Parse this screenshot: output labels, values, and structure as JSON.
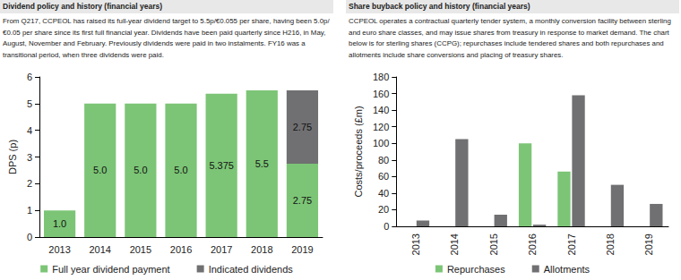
{
  "chart_data": [
    {
      "type": "bar",
      "title": "Dividend policy and history (financial years)",
      "subtitle": "From Q217, CCPEOL has raised its full-year dividend target to 5.5p/€0.055 per share, having been 5.0p/€0.05 per share since its first full financial year. Dividends have been paid quarterly since H216, in May, August, November and February. Previously dividends were paid in two instalments. FY16 was a transitional period, when three dividends were paid.",
      "categories": [
        "2013",
        "2014",
        "2015",
        "2016",
        "2017",
        "2018",
        "2019"
      ],
      "series": [
        {
          "name": "Full year dividend payment",
          "color": "#7cc576",
          "values": [
            1.0,
            5.0,
            5.0,
            5.0,
            5.375,
            5.5,
            2.75
          ],
          "value_labels": [
            "1.0",
            "5.0",
            "5.0",
            "5.0",
            "5.375",
            "5.5",
            "2.75"
          ]
        },
        {
          "name": "Indicated dividends",
          "color": "#707072",
          "values": [
            null,
            null,
            null,
            null,
            null,
            null,
            2.75
          ],
          "value_labels": [
            null,
            null,
            null,
            null,
            null,
            null,
            "2.75"
          ]
        }
      ],
      "ylabel": "DPS (p)",
      "ylim": [
        0,
        6
      ],
      "yticks": [
        0,
        1,
        2,
        3,
        4,
        5,
        6
      ],
      "stacked": true,
      "data_labels": true,
      "grid": false,
      "legend": "bottom"
    },
    {
      "type": "bar",
      "title": "Share buyback policy and history (financial years)",
      "subtitle": "CCPEOL operates a contractual quarterly tender system, a monthly conversion facility between sterling and euro share classes, and may issue shares from treasury in response to market demand. The chart below is for sterling shares (CCPG); repurchases include tendered shares and both repurchases and allotments include share conversions and placing of treasury shares.",
      "categories": [
        "2013",
        "2014",
        "2015",
        "2016",
        "2017",
        "2018",
        "2019"
      ],
      "series": [
        {
          "name": "Repurchases",
          "color": "#7cc576",
          "values": [
            null,
            null,
            null,
            100,
            66,
            null,
            null
          ]
        },
        {
          "name": "Allotments",
          "color": "#707072",
          "values": [
            7,
            105,
            14,
            2,
            158,
            50,
            27
          ]
        }
      ],
      "ylabel": "Costs/proceeds (£m)",
      "ylim": [
        0,
        180
      ],
      "yticks": [
        0,
        20,
        40,
        60,
        80,
        100,
        120,
        140,
        160,
        180
      ],
      "stacked": false,
      "data_labels": false,
      "grid": false,
      "legend": "bottom"
    }
  ]
}
